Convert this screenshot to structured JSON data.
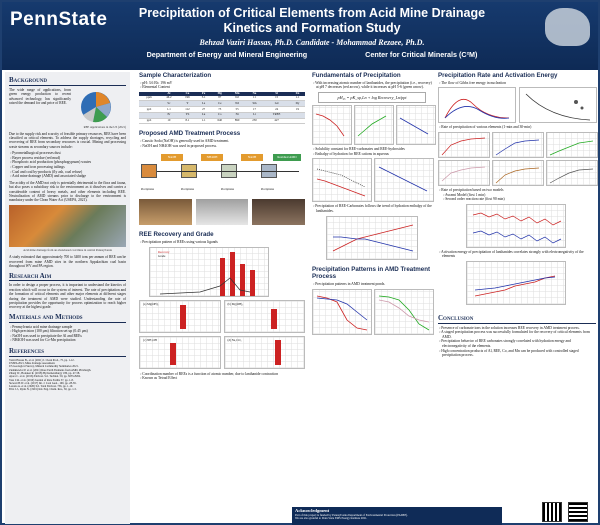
{
  "header": {
    "logo": "PennState",
    "title_line1": "Precipitation of Critical Elements from Acid Mine Drainage",
    "title_line2": "Kinetics and Formation Study",
    "authors": "Behzad Vaziri Hassas, Ph.D. Candidate  -  Mohammad Rezaee, Ph.D.",
    "dept1": "Department of Energy and Mineral Engineering",
    "dept2": "Center for Critical Minerals (C²M)"
  },
  "background": {
    "heading": "Background",
    "p1": "The wide range of applications, from green energy production to recent advanced technology, has significantly raised the demand for and price of REE.",
    "pie_caption": "REE Applications in the US (2021)",
    "p2": "Due to the supply risk and scarcity of feasible primary resources, REE have been classified as critical elements. To address the supply shortages, recycling and recovering of REE from secondary resources is crucial. Mining and processing waste streams as secondary sources include:",
    "bullets": [
      "Pyrometallurgical processes dust",
      "Bayer process residue (red mud)",
      "Phosphoric acid production (phosphogypsum) wastes",
      "Copper and iron processing tailings",
      "Coal and coal by-products (fly ash, coal refuse)",
      "Acid mine drainage (AMD) and associated sludge"
    ],
    "p3": "The acidity of the AMD not only is potentially detrimental to the flora and fauna, but also poses a subsidiary risk to the environment as it dissolves and carries a considerable content of heavy metals, and other elements including REE. Neutralization of AMD streams prior to discharge to the environment is mandatory under the Clean Water Act (USEPA, 2021).",
    "photo_caption": "Acid mine drainage from an abandoned coal mine in central Pennsylvania",
    "p4": "A study estimated that approximately 700 to 3400 tons per annum of REE can be recovered from mine AMD sites in the northern Appalachian coal basin throughout WV and PA region."
  },
  "research_aim": {
    "heading": "Research Aim",
    "text": "In order to design a proper process, it is important to understand the kinetics of reaction which will occur in the system of interest. The rate of precipitation and the formation of critical elements and other major elements at different stages during the treatment of AMD were studied. Understanding the rate of precipitation provides the opportunity for process optimization to reach higher recovery at the highest grade."
  },
  "materials": {
    "heading": "Materials and Methods",
    "bullets": [
      "Pennsylvania acid mine drainage sample",
      "High precision (100 μm) filtration set up (0.45 μm)",
      "NaOH was used to precipitate the Al and REEs",
      "NH4OH was used for Co-Mn precipitation"
    ]
  },
  "references": {
    "heading": "References",
    "items": [
      "Vaziri Hassas B., et al. (2021) J. Clean Prod., 75, pp. 1-12.",
      "USEPA 2021, Mine drainage assessment.",
      "US Geological Survey, Mineral Commodity Summaries 2021.",
      "Ziemkiewicz P. et al. (2021) Rare Earth Elements from AMD, Pittsburgh.",
      "Zhang W., Honaker R. (2018) Hydrometallurgy 180, pp. 47-58.",
      "Ayora C. et al. (2016) Environ. Sci. Technol. 50, pp. 8255-8262.",
      "Vass C.R. et al. (2019) Journal of Rare Earths 37, pp. 1-8.",
      "Stewart B.W. et al. (2017) Int. J. Coal Geol., 169, pp. 28-39.",
      "Lozano A. et al. (2020) Sci. Total Environ. 736, pp. 1-10.",
      "Fritz J.J., Ryals N. (1991) Ind. Eng. Chem. Res., 30, pp. 1-5."
    ]
  },
  "sample": {
    "heading": "Sample Characterization",
    "ph": "pH: 3.6    Eh: 196 mV",
    "elemental": "Elemental Content",
    "table_header": [
      "",
      "Al",
      "Ca",
      "Fe",
      "Mg",
      "Mn",
      "Na",
      "Si",
      "Zn"
    ],
    "table_rows": [
      [
        "ppm",
        "46.2",
        "196",
        "3.1",
        "87",
        "6.0",
        "11",
        "15",
        "1.1"
      ],
      [
        "",
        "Sc",
        "Y",
        "La",
        "Ce",
        "Nd",
        "Sm",
        "Gd",
        "Dy"
      ],
      [
        "ppb",
        "1.1",
        "112",
        "27",
        "73",
        "55",
        "17",
        "24",
        "19"
      ],
      [
        "",
        "Er",
        "Yb",
        "Lu",
        "Co",
        "Ni",
        "Li",
        "TREE",
        ""
      ],
      [
        "ppb",
        "10",
        "8.1",
        "1.1",
        "640",
        "890",
        "250",
        "427",
        ""
      ]
    ]
  },
  "proposed": {
    "heading": "Proposed AMD Treatment Process",
    "bullets": [
      "Caustic Soda (NaOH) is generally used in AMD treatment.",
      "NaOH and NH4OH was used in proposed process."
    ],
    "boxes": [
      "NaOH",
      "NH4OH",
      "NaOH",
      "Residual AMD"
    ],
    "labels": [
      "Precipitates",
      "Precipitates",
      "Precipitates",
      "Precipitates"
    ]
  },
  "recovery": {
    "heading": "REE Recovery and Grade",
    "bullet": "Precipitation pattern of REEs using various ligands",
    "chart_legend": [
      "Recovery",
      "Grade"
    ],
    "bullets2": [
      "Coordination number of REEs is a function of atomic number, due to lanthanide contraction",
      "Known as Tetrad Effect"
    ],
    "panel_titles": [
      "(a) Mg(OH)₂",
      "(b) Mg(OH)₂",
      "(c) NH₄OH",
      "(d) Na₂CO₃"
    ]
  },
  "fundamentals": {
    "heading": "Fundamentals of Precipitation",
    "bullet1": "With increasing atomic number of lanthanides, the precipitation (i.e., recovery) at pH 7 decreases (red arrow), while it increases at pH 5-6 (green arrow).",
    "equation": "pH₂₅ = pK_sp,Ln + log Recovery_Ln/ppt",
    "bullet2": "Solubility constant for REE-carbonates and REE-hydroxides",
    "bullet3": "Enthalpy of hydration for REE cations in aqueous",
    "bullet4": "Precipitation of REE-Carbonates follows the trend of hydration enthalpy of the lanthanides."
  },
  "patterns": {
    "heading": "Precipitation Patterns in AMD Treatment Process",
    "bullet": "Precipitation patterns in AMD treatment ponds."
  },
  "rate": {
    "heading": "Precipitation Rate and Activation Energy",
    "bullet1": "The flow of Gibbs free energy in nucleation",
    "bullet2": "Rate of precipitation of various elements (1-min and 30-min)",
    "bullet3": "Rate of precipitation based on two models",
    "sub3": [
      "Avrami Model (first 1 min)",
      "Second order reaction rate (first 90 min)"
    ],
    "bullet4": "Activation energy of precipitation of lanthanides correlates strongly with electronegativity of the elements"
  },
  "conclusion": {
    "heading": "Conclusion",
    "bullets": [
      "Presence of carbonate ions in the solution increases REE recovery in AMD treatment process.",
      "A staged precipitation process was successfully formulated for the recovery of critical elements from AMD.",
      "Precipitation behavior of REE carbonates strongly correlated with hydration energy and electronegativity of the elements.",
      "High concentration products of Al, REE, Co, and Mn can be produced with controlled staged precipitation process."
    ]
  },
  "ack": {
    "heading": "Acknowledgment",
    "l1": "Part of this project is funded by Pennsylvania Department of Environmental Protection (PADEP).",
    "l2": "We are also grateful to Penn State EMS Energy Institute 2021."
  }
}
